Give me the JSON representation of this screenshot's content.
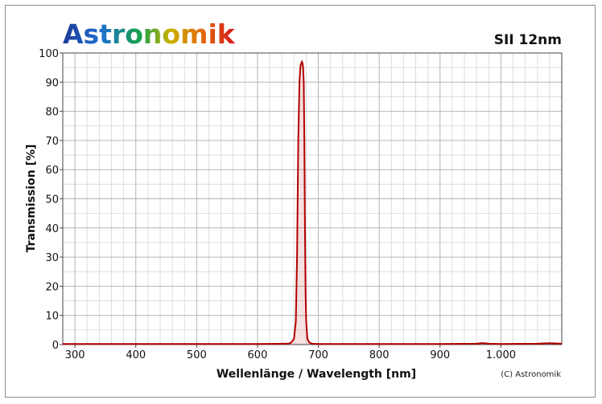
{
  "brand": {
    "name": "Astronomik",
    "gradient": [
      "#1f3a99",
      "#1e6fd0",
      "#17a34a",
      "#c9b200",
      "#e36d0c",
      "#d4141c"
    ]
  },
  "copyright": "(C) Astronomik",
  "colors": {
    "curve": "#b30000",
    "grid_major": "#b4b4b4",
    "grid_minor": "#dddddd",
    "axis": "#444444"
  },
  "chart_data": {
    "type": "line",
    "title": "SII 12nm",
    "xlabel": "Wellenlänge / Wavelength [nm]",
    "ylabel": "Transmission [%]",
    "xlim": [
      280,
      1100
    ],
    "ylim": [
      0,
      100
    ],
    "x_ticks": [
      300,
      400,
      500,
      600,
      700,
      800,
      900,
      1000
    ],
    "x_tick_labels": [
      "300",
      "400",
      "500",
      "600",
      "700",
      "800",
      "900",
      "1.000"
    ],
    "y_ticks": [
      0,
      10,
      20,
      30,
      40,
      50,
      60,
      70,
      80,
      90,
      100
    ],
    "y_tick_labels": [
      "0",
      "10",
      "20",
      "30",
      "40",
      "50",
      "60",
      "70",
      "80",
      "90",
      "100"
    ],
    "grid": true,
    "series": [
      {
        "x": [
          280,
          600,
          650,
          655,
          660,
          663,
          665,
          667,
          669,
          670,
          671,
          672,
          673,
          674,
          675,
          676,
          677,
          678,
          679,
          680,
          682,
          685,
          690,
          700,
          800,
          900,
          960,
          970,
          980,
          1000,
          1060,
          1080,
          1100
        ],
        "y": [
          0.2,
          0.2,
          0.3,
          0.6,
          2,
          8,
          30,
          70,
          90,
          94,
          96,
          96.5,
          97,
          96.5,
          95,
          90,
          70,
          40,
          18,
          8,
          2,
          0.7,
          0.3,
          0.2,
          0.2,
          0.2,
          0.3,
          0.5,
          0.3,
          0.2,
          0.3,
          0.5,
          0.3
        ]
      }
    ]
  }
}
